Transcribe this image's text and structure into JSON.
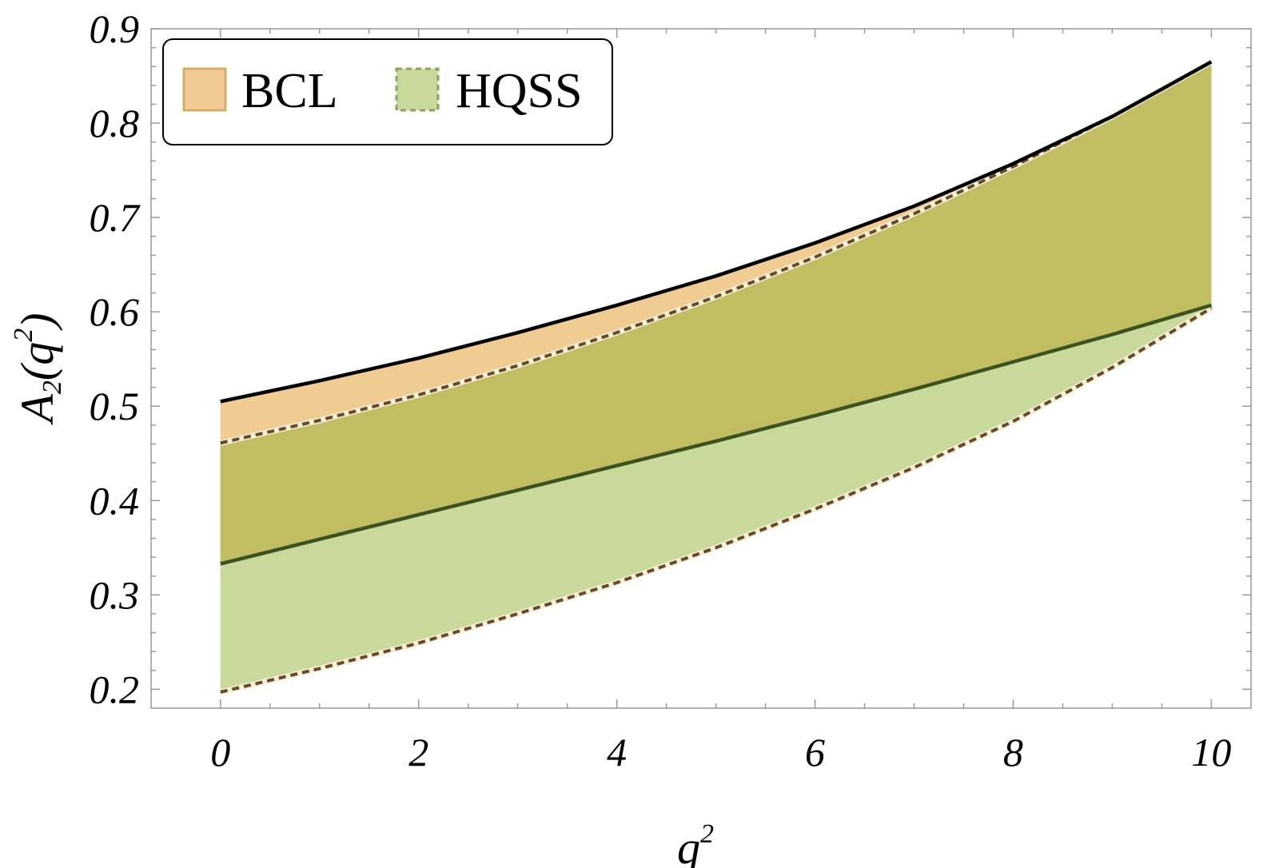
{
  "chart_data": {
    "type": "area",
    "title": "",
    "xlabel": {
      "base": "q",
      "sup": "2"
    },
    "ylabel": {
      "base": "A",
      "sub": "2",
      "open": "(q",
      "sup": "2",
      "close": ")"
    },
    "xlim": [
      -0.7,
      10.4
    ],
    "ylim": [
      0.18,
      0.9
    ],
    "xticks": [
      0,
      2,
      4,
      6,
      8,
      10
    ],
    "xtick_labels": [
      "0",
      "2",
      "4",
      "6",
      "8",
      "10"
    ],
    "yticks": [
      0.2,
      0.3,
      0.4,
      0.5,
      0.6,
      0.7,
      0.8,
      0.9
    ],
    "ytick_labels": [
      "0.2",
      "0.3",
      "0.4",
      "0.5",
      "0.6",
      "0.7",
      "0.8",
      "0.9"
    ],
    "grid": false,
    "legend_position": "top-left",
    "series": [
      {
        "name": "BCL",
        "fill": "#f0cc92",
        "edge": "#d7ac6a",
        "x": [
          0,
          1,
          2,
          3,
          4,
          5,
          6,
          7,
          8,
          9,
          10
        ],
        "upper": [
          0.505,
          0.527,
          0.551,
          0.578,
          0.607,
          0.638,
          0.673,
          0.712,
          0.757,
          0.807,
          0.865
        ],
        "lower": [
          0.333,
          0.359,
          0.385,
          0.411,
          0.437,
          0.463,
          0.49,
          0.518,
          0.547,
          0.576,
          0.607
        ]
      },
      {
        "name": "HQSS",
        "fill": "#c8d99b",
        "edge": "#8ea35e",
        "x": [
          0,
          1,
          2,
          3,
          4,
          5,
          6,
          7,
          8,
          9,
          10
        ],
        "upper": [
          0.461,
          0.485,
          0.512,
          0.543,
          0.578,
          0.616,
          0.658,
          0.704,
          0.754,
          0.807,
          0.865
        ],
        "lower": [
          0.197,
          0.222,
          0.249,
          0.28,
          0.313,
          0.35,
          0.391,
          0.435,
          0.484,
          0.541,
          0.604
        ]
      }
    ],
    "overlap_fill": "#c1bd62",
    "line_colors": {
      "bcl_upper": "#000000",
      "bcl_lower": "#3e5220",
      "hqss_bounds": "#6b4a2a"
    }
  }
}
